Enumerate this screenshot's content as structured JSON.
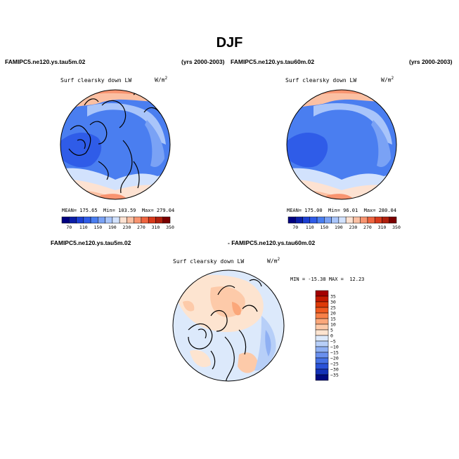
{
  "title": "DJF",
  "panels": [
    {
      "case": "FAMIPC5.ne120.ys.tau5m.02",
      "years": "(yrs 2000-2003)",
      "variable": "Surf clearsky down LW",
      "units_base": "W/m",
      "units_exp": "2",
      "stats": {
        "mean_label": "MEAN=",
        "mean": "175.65",
        "min_label": "Min=",
        "min": "103.59",
        "max_label": "Max=",
        "max": "279.04"
      }
    },
    {
      "case": "FAMIPC5.ne120.ys.tau60m.02",
      "years": "(yrs 2000-2003)",
      "variable": "Surf clearsky down LW",
      "units_base": "W/m",
      "units_exp": "2",
      "stats": {
        "mean_label": "MEAN=",
        "mean": "175.00",
        "min_label": "Min=",
        "min": "96.01",
        "max_label": "Max=",
        "max": "280.04"
      }
    }
  ],
  "diff": {
    "case_a": "FAMIPC5.ne120.ys.tau5m.02",
    "case_b": "- FAMIPC5.ne120.ys.tau60m.02",
    "variable": "Surf clearsky down LW",
    "units_base": "W/m",
    "units_exp": "2",
    "min_label": "MIN =",
    "min": "-15.38",
    "max_label": "MAX =",
    "max": "12.23"
  },
  "chart_data": [
    {
      "type": "heatmap",
      "projection": "north polar stereographic",
      "title": "Surf clearsky down LW",
      "colorbar_levels": [
        70,
        110,
        150,
        190,
        230,
        270,
        310,
        350
      ],
      "colorbar_colors": [
        "#000080",
        "#0b1ea8",
        "#1d3fd2",
        "#2f5ce8",
        "#4a7ef0",
        "#7aa2f5",
        "#a9c5fa",
        "#d2e2fd",
        "#fde2d2",
        "#fbc0a3",
        "#f89470",
        "#ef6540",
        "#d83a1c",
        "#b0200d",
        "#7a0000"
      ],
      "stats": {
        "mean": 175.65,
        "min": 103.59,
        "max": 279.04
      }
    },
    {
      "type": "heatmap",
      "projection": "north polar stereographic",
      "title": "Surf clearsky down LW",
      "colorbar_levels": [
        70,
        110,
        150,
        190,
        230,
        270,
        310,
        350
      ],
      "colorbar_colors": [
        "#000080",
        "#0b1ea8",
        "#1d3fd2",
        "#2f5ce8",
        "#4a7ef0",
        "#7aa2f5",
        "#a9c5fa",
        "#d2e2fd",
        "#fde2d2",
        "#fbc0a3",
        "#f89470",
        "#ef6540",
        "#d83a1c",
        "#b0200d",
        "#7a0000"
      ],
      "stats": {
        "mean": 175.0,
        "min": 96.01,
        "max": 280.04
      }
    },
    {
      "type": "heatmap",
      "projection": "north polar stereographic",
      "title": "Surf clearsky down LW",
      "colorbar_levels": [
        35,
        30,
        25,
        20,
        15,
        10,
        5,
        0,
        -5,
        -10,
        -15,
        -20,
        -25,
        -30,
        -35
      ],
      "colorbar_labels": [
        "35",
        "30",
        "25",
        "20",
        "15",
        "10",
        "5",
        "0",
        "−5",
        "−10",
        "−15",
        "−20",
        "−25",
        "−30",
        "−35"
      ],
      "colorbar_colors": [
        "#a30000",
        "#c41a00",
        "#de3a08",
        "#f05a20",
        "#f88048",
        "#fba77a",
        "#fdcaa9",
        "#fde4d0",
        "#dce9fb",
        "#b7cff8",
        "#8fb0f3",
        "#6a90ee",
        "#4672e6",
        "#2a52d8",
        "#1432b8",
        "#000a80"
      ],
      "stats": {
        "min": -15.38,
        "max": 12.23
      }
    }
  ]
}
